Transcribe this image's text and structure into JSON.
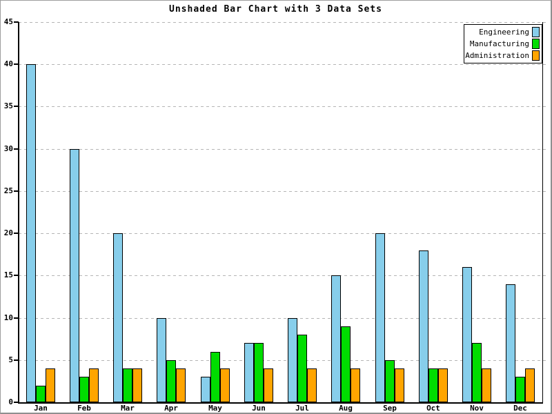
{
  "chart_data": {
    "type": "bar",
    "title": "Unshaded Bar Chart with 3 Data Sets",
    "xlabel": "",
    "ylabel": "",
    "categories": [
      "Jan",
      "Feb",
      "Mar",
      "Apr",
      "May",
      "Jun",
      "Jul",
      "Aug",
      "Sep",
      "Oct",
      "Nov",
      "Dec"
    ],
    "series": [
      {
        "name": "Engineering",
        "color": "#87CEEB",
        "values": [
          40,
          30,
          20,
          10,
          3,
          7,
          10,
          15,
          20,
          18,
          16,
          14
        ]
      },
      {
        "name": "Manufacturing",
        "color": "#00DD00",
        "values": [
          2,
          3,
          4,
          5,
          6,
          7,
          8,
          9,
          5,
          4,
          7,
          3
        ]
      },
      {
        "name": "Administration",
        "color": "#FFA500",
        "values": [
          4,
          4,
          4,
          4,
          4,
          4,
          4,
          4,
          4,
          4,
          4,
          4
        ]
      }
    ],
    "ylim": [
      0,
      45
    ],
    "y_ticks": [
      0,
      5,
      10,
      15,
      20,
      25,
      30,
      35,
      40,
      45
    ],
    "grid": "horizontal-dashed",
    "grid_color": "#b4b4b4",
    "legend_position": "top-right",
    "bar_outline_color": "#000000"
  }
}
